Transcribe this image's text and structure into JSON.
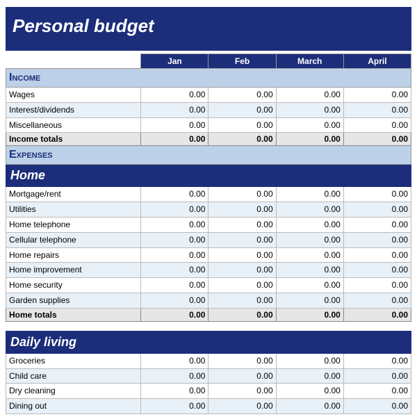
{
  "title": "Personal budget",
  "months": [
    "Jan",
    "Feb",
    "March",
    "April"
  ],
  "colors": {
    "header_bg": "#1c2d7a",
    "header_fg": "#ffffff",
    "section_bg": "#bcd1e8",
    "alt_row_bg": "#e8f0f8",
    "totals_bg": "#e6e6e6",
    "border": "#bbbbbb"
  },
  "sections": {
    "income": {
      "label": "Income",
      "rows": [
        {
          "label": "Wages",
          "vals": [
            "0.00",
            "0.00",
            "0.00",
            "0.00"
          ]
        },
        {
          "label": "Interest/dividends",
          "vals": [
            "0.00",
            "0.00",
            "0.00",
            "0.00"
          ]
        },
        {
          "label": "Miscellaneous",
          "vals": [
            "0.00",
            "0.00",
            "0.00",
            "0.00"
          ]
        }
      ],
      "totals": {
        "label": "Income totals",
        "vals": [
          "0.00",
          "0.00",
          "0.00",
          "0.00"
        ]
      }
    },
    "expenses": {
      "label": "Expenses",
      "subsections": {
        "home": {
          "label": "Home",
          "rows": [
            {
              "label": "Mortgage/rent",
              "vals": [
                "0.00",
                "0.00",
                "0.00",
                "0.00"
              ]
            },
            {
              "label": "Utilities",
              "vals": [
                "0.00",
                "0.00",
                "0.00",
                "0.00"
              ]
            },
            {
              "label": "Home telephone",
              "vals": [
                "0.00",
                "0.00",
                "0.00",
                "0.00"
              ]
            },
            {
              "label": "Cellular telephone",
              "vals": [
                "0.00",
                "0.00",
                "0.00",
                "0.00"
              ]
            },
            {
              "label": "Home repairs",
              "vals": [
                "0.00",
                "0.00",
                "0.00",
                "0.00"
              ]
            },
            {
              "label": "Home improvement",
              "vals": [
                "0.00",
                "0.00",
                "0.00",
                "0.00"
              ]
            },
            {
              "label": "Home security",
              "vals": [
                "0.00",
                "0.00",
                "0.00",
                "0.00"
              ]
            },
            {
              "label": "Garden supplies",
              "vals": [
                "0.00",
                "0.00",
                "0.00",
                "0.00"
              ]
            }
          ],
          "totals": {
            "label": "Home totals",
            "vals": [
              "0.00",
              "0.00",
              "0.00",
              "0.00"
            ]
          }
        },
        "daily": {
          "label": "Daily living",
          "rows": [
            {
              "label": "Groceries",
              "vals": [
                "0.00",
                "0.00",
                "0.00",
                "0.00"
              ]
            },
            {
              "label": "Child care",
              "vals": [
                "0.00",
                "0.00",
                "0.00",
                "0.00"
              ]
            },
            {
              "label": "Dry cleaning",
              "vals": [
                "0.00",
                "0.00",
                "0.00",
                "0.00"
              ]
            },
            {
              "label": "Dining out",
              "vals": [
                "0.00",
                "0.00",
                "0.00",
                "0.00"
              ]
            }
          ]
        }
      }
    }
  }
}
